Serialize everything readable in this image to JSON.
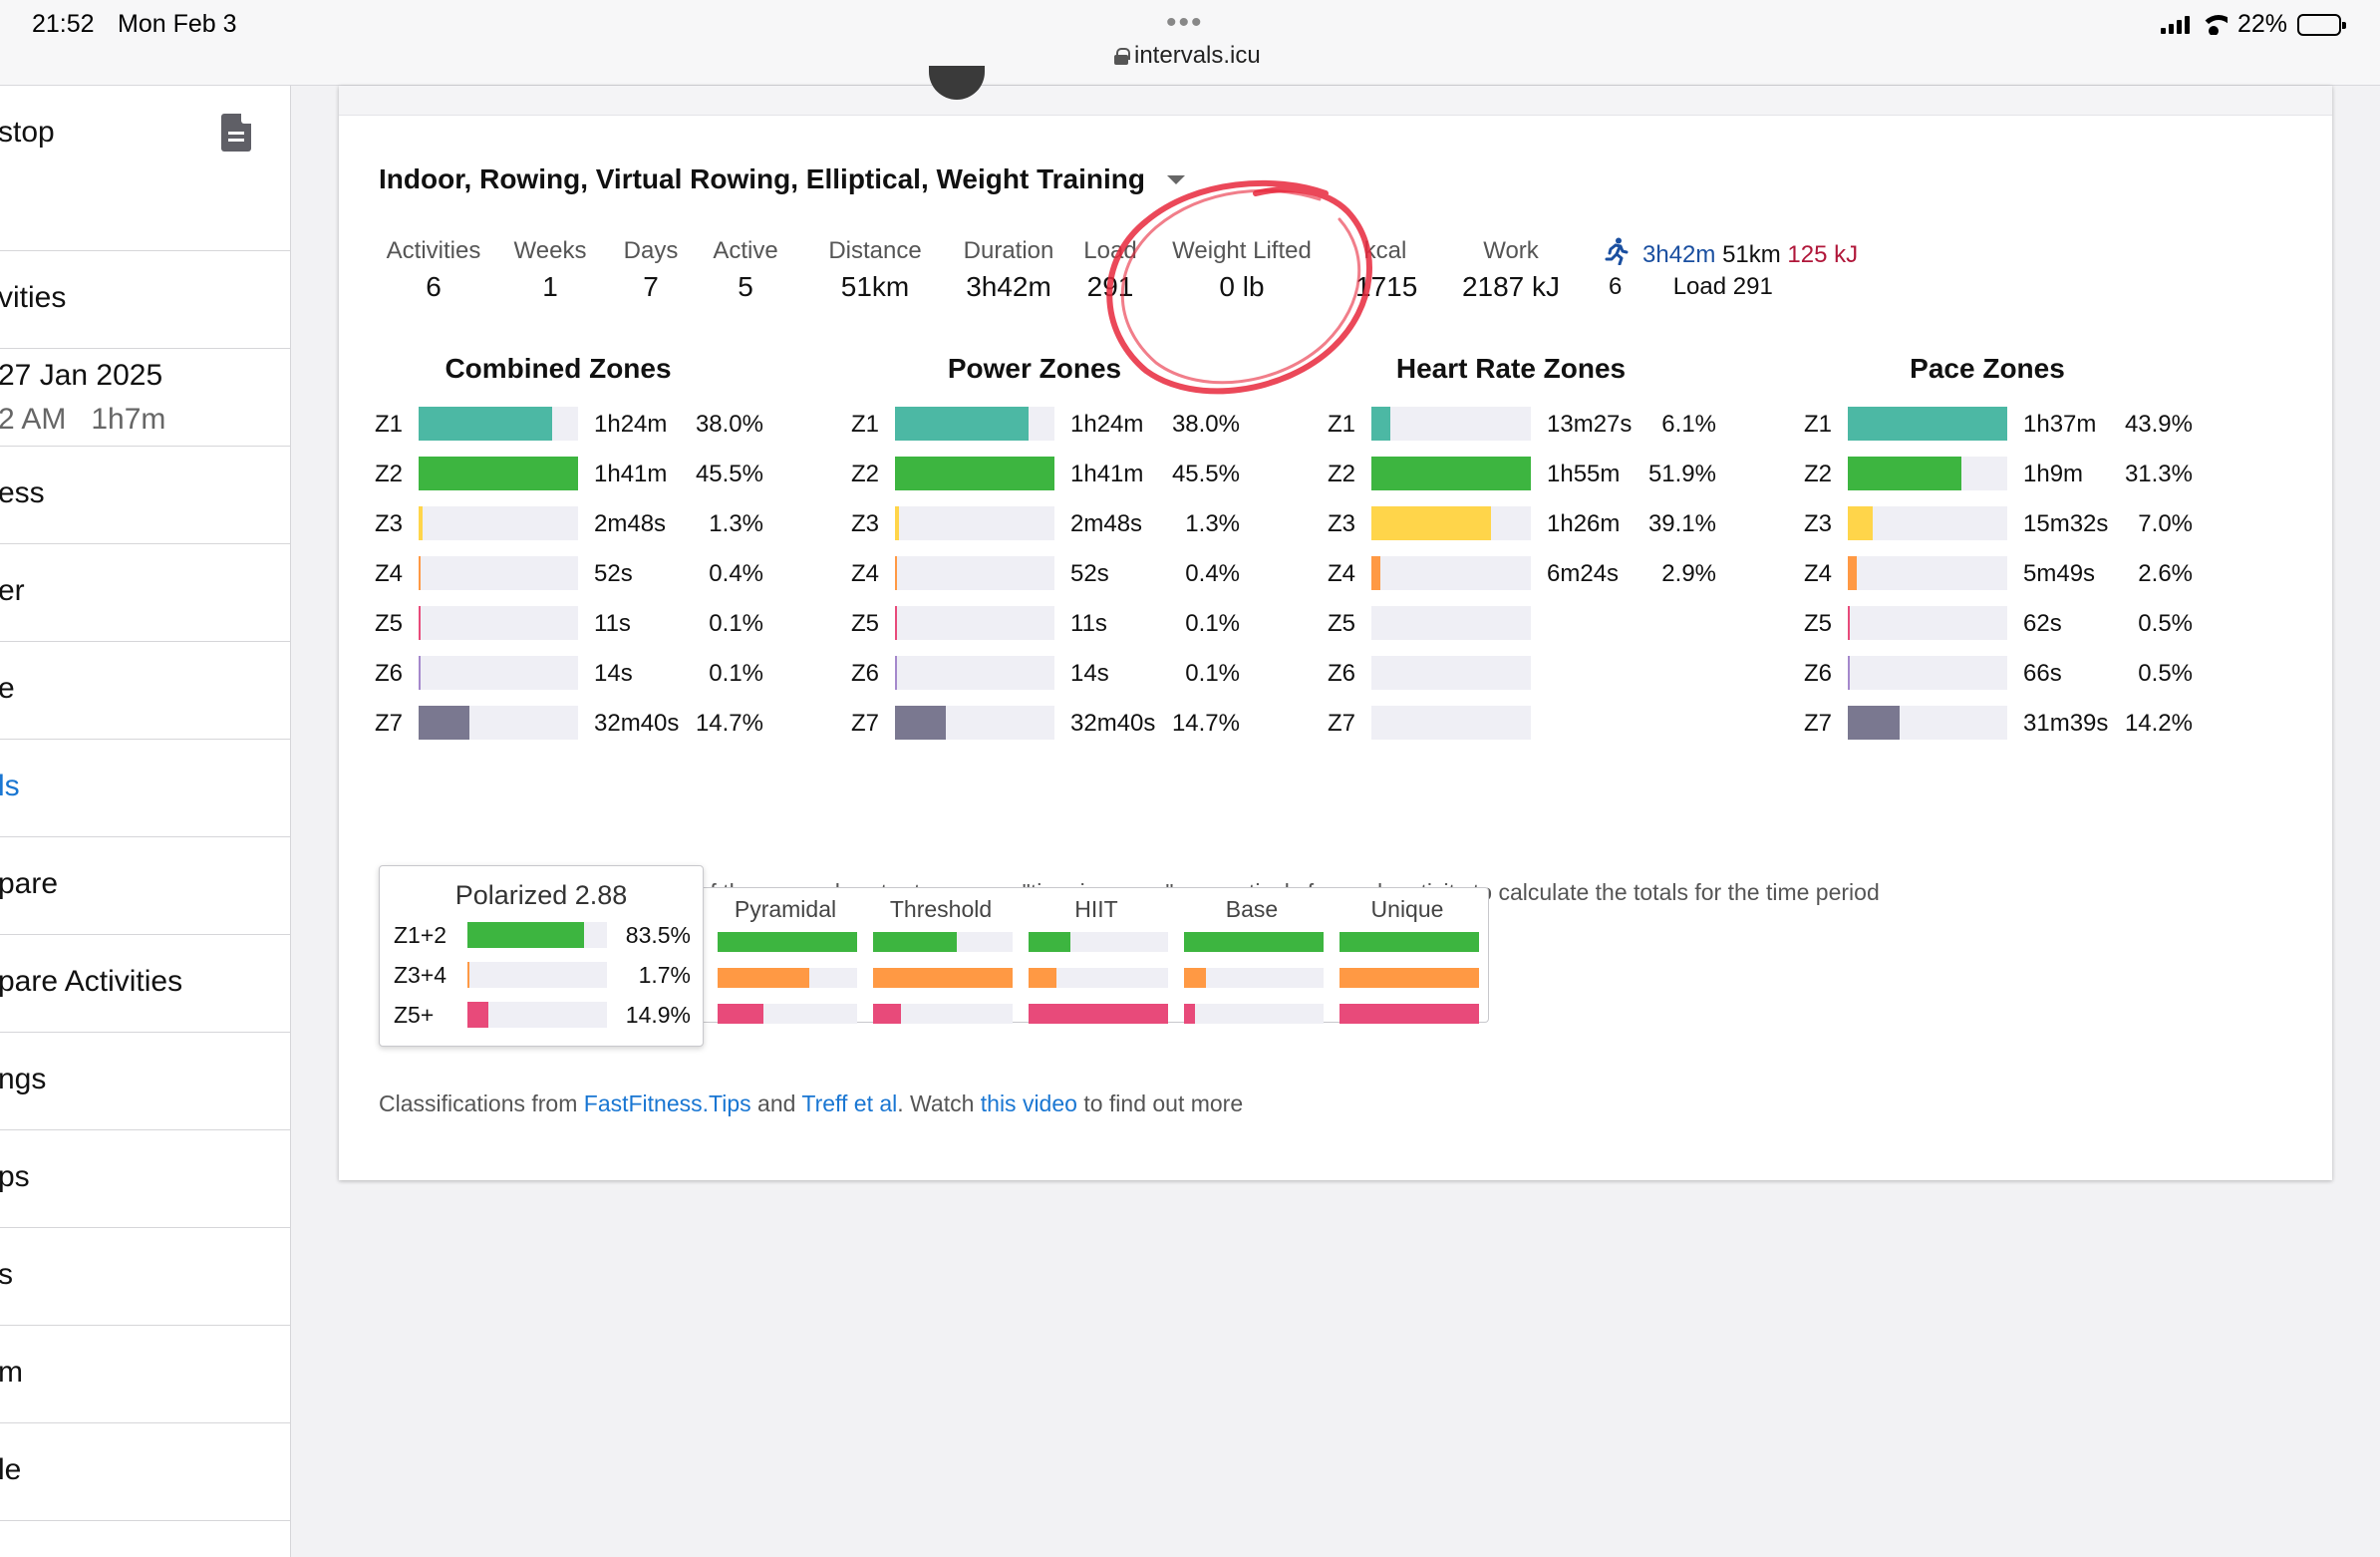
{
  "status": {
    "time": "21:52",
    "date": "Mon Feb 3",
    "battery": "22%",
    "url": "intervals.icu",
    "menu_dots": "•••"
  },
  "sidebar": {
    "items": [
      {
        "label": "stop",
        "top": 0,
        "height": 166
      },
      {
        "label": "vities"
      },
      {
        "label": "27 Jan 2025",
        "sub": "2 AM   1h7m"
      },
      {
        "label": "ess"
      },
      {
        "label": "er"
      },
      {
        "label": "e"
      },
      {
        "label": "ls"
      },
      {
        "label": "pare"
      },
      {
        "label": "pare Activities"
      },
      {
        "label": "ngs"
      },
      {
        "label": "ps"
      },
      {
        "label": "s"
      },
      {
        "label": "m"
      },
      {
        "label": "le"
      }
    ]
  },
  "filter": {
    "label": "Indoor, Rowing, Virtual Rowing, Elliptical, Weight Training"
  },
  "stats": [
    {
      "label": "Activities",
      "value": "6"
    },
    {
      "label": "Weeks",
      "value": "1"
    },
    {
      "label": "Days",
      "value": "7"
    },
    {
      "label": "Active",
      "value": "5"
    },
    {
      "label": "Distance",
      "value": "51km"
    },
    {
      "label": "Duration",
      "value": "3h42m"
    },
    {
      "label": "Load",
      "value": "291"
    },
    {
      "label": "Weight Lifted",
      "value": "0 lb"
    },
    {
      "label": "kcal",
      "value": "1715"
    },
    {
      "label": "Work",
      "value": "2187 kJ"
    }
  ],
  "run_summary": {
    "duration": "3h42m",
    "distance": "51km",
    "work": "125 kJ",
    "count": "6",
    "load": "Load 291"
  },
  "zones": [
    {
      "title": "Combined Zones",
      "rows": [
        {
          "zone": "Z1",
          "time": "1h24m",
          "pct": "38.0%",
          "frac": 0.836,
          "color": "#4cb8a4"
        },
        {
          "zone": "Z2",
          "time": "1h41m",
          "pct": "45.5%",
          "frac": 1.0,
          "color": "#3db540"
        },
        {
          "zone": "Z3",
          "time": "2m48s",
          "pct": "1.3%",
          "frac": 0.028,
          "color": "#ffd54a"
        },
        {
          "zone": "Z4",
          "time": "52s",
          "pct": "0.4%",
          "frac": 0.012,
          "color": "#ff9944"
        },
        {
          "zone": "Z5",
          "time": "11s",
          "pct": "0.1%",
          "frac": 0.0,
          "color": "#e84a7a"
        },
        {
          "zone": "Z6",
          "time": "14s",
          "pct": "0.1%",
          "frac": 0.0,
          "color": "#a488cc"
        },
        {
          "zone": "Z7",
          "time": "32m40s",
          "pct": "14.7%",
          "frac": 0.32,
          "color": "#7a7890"
        }
      ]
    },
    {
      "title": "Power Zones",
      "rows": [
        {
          "zone": "Z1",
          "time": "1h24m",
          "pct": "38.0%",
          "frac": 0.836,
          "color": "#4cb8a4"
        },
        {
          "zone": "Z2",
          "time": "1h41m",
          "pct": "45.5%",
          "frac": 1.0,
          "color": "#3db540"
        },
        {
          "zone": "Z3",
          "time": "2m48s",
          "pct": "1.3%",
          "frac": 0.028,
          "color": "#ffd54a"
        },
        {
          "zone": "Z4",
          "time": "52s",
          "pct": "0.4%",
          "frac": 0.012,
          "color": "#ff9944"
        },
        {
          "zone": "Z5",
          "time": "11s",
          "pct": "0.1%",
          "frac": 0.0,
          "color": "#e84a7a"
        },
        {
          "zone": "Z6",
          "time": "14s",
          "pct": "0.1%",
          "frac": 0.0,
          "color": "#a488cc"
        },
        {
          "zone": "Z7",
          "time": "32m40s",
          "pct": "14.7%",
          "frac": 0.32,
          "color": "#7a7890"
        }
      ]
    },
    {
      "title": "Heart Rate Zones",
      "rows": [
        {
          "zone": "Z1",
          "time": "13m27s",
          "pct": "6.1%",
          "frac": 0.118,
          "color": "#4cb8a4"
        },
        {
          "zone": "Z2",
          "time": "1h55m",
          "pct": "51.9%",
          "frac": 1.0,
          "color": "#3db540"
        },
        {
          "zone": "Z3",
          "time": "1h26m",
          "pct": "39.1%",
          "frac": 0.753,
          "color": "#ffd54a"
        },
        {
          "zone": "Z4",
          "time": "6m24s",
          "pct": "2.9%",
          "frac": 0.056,
          "color": "#ff9944"
        },
        {
          "zone": "Z5",
          "time": "",
          "pct": "",
          "frac": 0.0,
          "color": "#e84a7a"
        },
        {
          "zone": "Z6",
          "time": "",
          "pct": "",
          "frac": 0.0,
          "color": "#a488cc"
        },
        {
          "zone": "Z7",
          "time": "",
          "pct": "",
          "frac": 0.0,
          "color": "#7a7890"
        }
      ]
    },
    {
      "title": "Pace Zones",
      "rows": [
        {
          "zone": "Z1",
          "time": "1h37m",
          "pct": "43.9%",
          "frac": 1.0,
          "color": "#4cb8a4"
        },
        {
          "zone": "Z2",
          "time": "1h9m",
          "pct": "31.3%",
          "frac": 0.713,
          "color": "#3db540"
        },
        {
          "zone": "Z3",
          "time": "15m32s",
          "pct": "7.0%",
          "frac": 0.159,
          "color": "#ffd54a"
        },
        {
          "zone": "Z4",
          "time": "5m49s",
          "pct": "2.6%",
          "frac": 0.059,
          "color": "#ff9944"
        },
        {
          "zone": "Z5",
          "time": "62s",
          "pct": "0.5%",
          "frac": 0.011,
          "color": "#e84a7a"
        },
        {
          "zone": "Z6",
          "time": "66s",
          "pct": "0.5%",
          "frac": 0.011,
          "color": "#a488cc"
        },
        {
          "zone": "Z7",
          "time": "31m39s",
          "pct": "14.2%",
          "frac": 0.323,
          "color": "#7a7890"
        }
      ]
    }
  ],
  "zones_note": "The combined zones uses one of the power, heart rate or pace \"time in zones\" respectively for each activity to calculate the totals for the time period",
  "polarized": {
    "title": "Polarized 2.88",
    "rows": [
      {
        "label": "Z1+2",
        "value": "83.5%",
        "frac": 0.835,
        "color": "#3db540"
      },
      {
        "label": "Z3+4",
        "value": "1.7%",
        "frac": 0.017,
        "color": "#ff9944"
      },
      {
        "label": "Z5+",
        "value": "14.9%",
        "frac": 0.149,
        "color": "#e84a7a"
      }
    ]
  },
  "classifications": [
    {
      "name": "Pyramidal",
      "fracs": [
        1.0,
        0.66,
        0.33
      ]
    },
    {
      "name": "Threshold",
      "fracs": [
        0.6,
        1.0,
        0.2
      ]
    },
    {
      "name": "HIIT",
      "fracs": [
        0.3,
        0.2,
        1.0
      ]
    },
    {
      "name": "Base",
      "fracs": [
        1.0,
        0.16,
        0.08
      ]
    },
    {
      "name": "Unique",
      "fracs": [
        1.0,
        1.0,
        1.0
      ]
    }
  ],
  "class_colors": [
    "#3db540",
    "#ff9944",
    "#e84a7a"
  ],
  "footer": {
    "prefix": "Classifications from ",
    "link1": "FastFitness.Tips",
    "mid1": " and ",
    "link2": "Treff et al",
    "mid2": ". Watch ",
    "link3": "this video",
    "suffix": " to find out more"
  }
}
